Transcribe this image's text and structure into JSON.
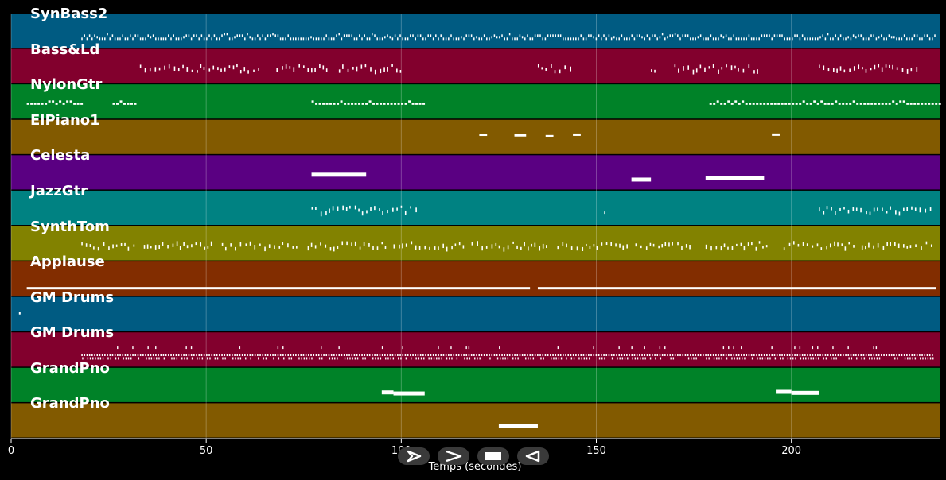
{
  "chart_data": {
    "type": "piano-roll",
    "xlabel": "Temps (secondes)",
    "xlim": [
      0,
      238
    ],
    "xticks": [
      0,
      50,
      100,
      150,
      200
    ],
    "tracks": [
      {
        "name": "SynBass2",
        "color": "#005b82",
        "pattern": "dense",
        "segments": [
          [
            18,
            237
          ]
        ]
      },
      {
        "name": "Bass&Ld",
        "color": "#82002d",
        "pattern": "sparse",
        "segments": [
          [
            33,
            64
          ],
          [
            68,
            82
          ],
          [
            84,
            100
          ],
          [
            135,
            144
          ],
          [
            164,
            166
          ],
          [
            170,
            192
          ],
          [
            207,
            233
          ]
        ]
      },
      {
        "name": "NylonGtr",
        "color": "#008228",
        "pattern": "dashed",
        "segments": [
          [
            4,
            18
          ],
          [
            26,
            32
          ],
          [
            77,
            106
          ],
          [
            179,
            238
          ]
        ]
      },
      {
        "name": "ElPiano1",
        "color": "#825a00",
        "pattern": "blips",
        "segments": [
          [
            120,
            122
          ],
          [
            129,
            132
          ],
          [
            137,
            139
          ],
          [
            144,
            146
          ],
          [
            195,
            197
          ]
        ]
      },
      {
        "name": "Celesta",
        "color": "#5a0082",
        "pattern": "blocks",
        "segments": [
          [
            77,
            91
          ],
          [
            159,
            164
          ],
          [
            178,
            193
          ]
        ]
      },
      {
        "name": "JazzGtr",
        "color": "#008282",
        "pattern": "sparse",
        "segments": [
          [
            77,
            104
          ],
          [
            152,
            153
          ],
          [
            207,
            236
          ]
        ]
      },
      {
        "name": "SynthTom",
        "color": "#828200",
        "pattern": "sparse",
        "segments": [
          [
            18,
            32
          ],
          [
            34,
            52
          ],
          [
            54,
            74
          ],
          [
            76,
            96
          ],
          [
            98,
            116
          ],
          [
            118,
            138
          ],
          [
            140,
            158
          ],
          [
            160,
            174
          ],
          [
            178,
            194
          ],
          [
            198,
            216
          ],
          [
            218,
            236
          ]
        ]
      },
      {
        "name": "Applause",
        "color": "#822d00",
        "pattern": "line",
        "segments": [
          [
            4,
            133
          ],
          [
            135,
            237
          ]
        ]
      },
      {
        "name": "GM Drums",
        "color": "#005b82",
        "pattern": "blips",
        "segments": [
          [
            2,
            2.3
          ]
        ]
      },
      {
        "name": "GM Drums",
        "color": "#82002d",
        "pattern": "double",
        "segments": [
          [
            18,
            236
          ]
        ]
      },
      {
        "name": "GrandPno",
        "color": "#008228",
        "pattern": "blocks",
        "segments": [
          [
            95,
            98
          ],
          [
            98,
            106
          ],
          [
            196,
            200
          ],
          [
            200,
            207
          ]
        ]
      },
      {
        "name": "GrandPno",
        "color": "#825a00",
        "pattern": "blocks",
        "segments": [
          [
            125,
            135
          ]
        ]
      }
    ]
  },
  "controls": [
    {
      "name": "play-button",
      "icon": "play-icon"
    },
    {
      "name": "fast-forward-button",
      "icon": "forward-icon"
    },
    {
      "name": "stop-button",
      "icon": "stop-icon"
    },
    {
      "name": "rewind-button",
      "icon": "rewind-icon"
    }
  ]
}
